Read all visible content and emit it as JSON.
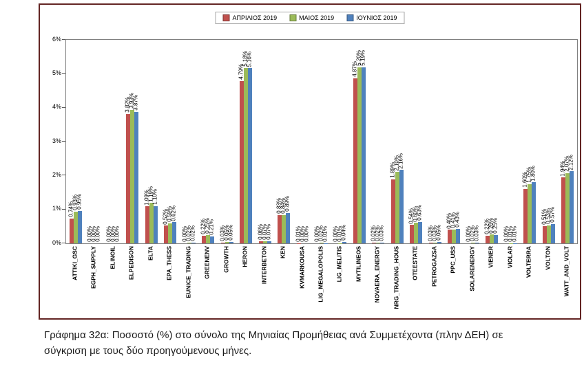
{
  "chart_data": {
    "type": "bar",
    "title": "",
    "xlabel": "",
    "ylabel": "",
    "ylim": [
      0,
      6
    ],
    "yticks": [
      "0%",
      "1%",
      "2%",
      "3%",
      "4%",
      "5%",
      "6%"
    ],
    "grid": false,
    "legend_position": "top-center",
    "value_label_style": "rotated 90deg, format 0.00%",
    "categories": [
      "ATTIKI_GSC",
      "EGPH_SUPPLY",
      "ELINOIL",
      "ELPEDISON",
      "ELTA",
      "EPA_THESS",
      "EUNICE_TRADING",
      "GREENENV",
      "GROWTH",
      "HERON",
      "INTERBETON",
      "KEN",
      "KVMARKOUSA",
      "LIG_MEGALOPOLIS",
      "LIG_MELITIS",
      "MYTILINEOS",
      "NOVAERA_ENERGY",
      "NRG_TRADING_HOUS",
      "OTEESTATE",
      "PETROGAZSA",
      "PPC_USS",
      "SOLARENERGY",
      "VIENER",
      "VIOLAR",
      "VOLTERRA",
      "VOLTON",
      "WATT_AND_VOLT"
    ],
    "series": [
      {
        "name": "ΑΠΡΙΛΙΟΣ 2019",
        "color": "#C0504D",
        "values": [
          0.74,
          0.0,
          0.0,
          3.82,
          1.09,
          0.52,
          0.0,
          0.22,
          0.03,
          4.79,
          0.06,
          0.83,
          0.01,
          0.0,
          0.0,
          4.87,
          0.02,
          1.89,
          0.54,
          0.03,
          0.4,
          0.0,
          0.22,
          0.0,
          1.6,
          0.51,
          1.94
        ]
      },
      {
        "name": "ΜΑΙΟΣ 2019",
        "color": "#9BBB59",
        "values": [
          0.93,
          0.0,
          0.0,
          3.93,
          1.19,
          0.59,
          0.02,
          0.25,
          0.05,
          5.18,
          0.07,
          0.84,
          0.0,
          0.02,
          0.01,
          5.2,
          0.02,
          2.1,
          0.6,
          0.03,
          0.41,
          0.02,
          0.26,
          0.01,
          1.75,
          0.53,
          2.07
        ]
      },
      {
        "name": "ΙΟΥΝΙΟΣ 2019",
        "color": "#4F81BD",
        "values": [
          0.95,
          0.0,
          0.0,
          3.87,
          1.1,
          0.62,
          0.02,
          0.21,
          0.05,
          5.16,
          0.07,
          0.89,
          0.0,
          0.01,
          0.04,
          5.19,
          0.03,
          2.16,
          0.63,
          0.05,
          0.43,
          0.03,
          0.25,
          0.01,
          1.8,
          0.57,
          2.12
        ]
      }
    ]
  },
  "caption": {
    "text": "Γράφημα 32α: Ποσοστό (%) στο σύνολο της Μηνιαίας Προμήθειας ανά Συμμετέχοντα (πλην ΔΕΗ) σε σύγκριση με τους δύο προηγούμενους μήνες."
  },
  "colors": {
    "frame_border": "#632423",
    "plot_border": "#808080",
    "tick": "#595959"
  }
}
